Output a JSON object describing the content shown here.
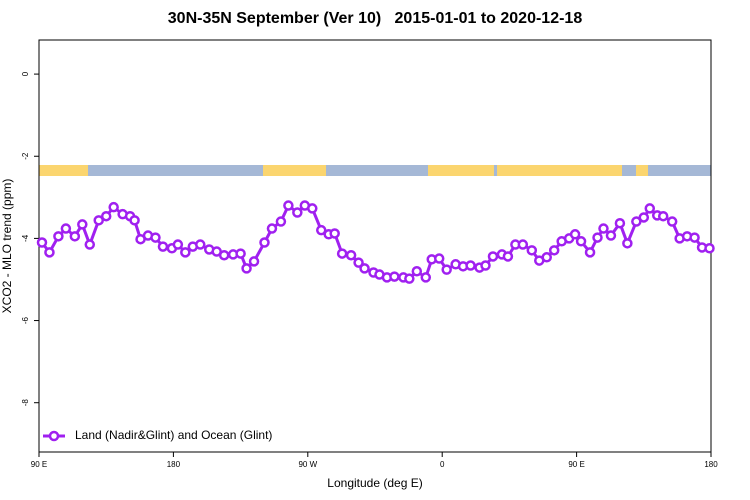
{
  "chart_data": {
    "type": "line",
    "title": "30N-35N September (Ver 10)   2015-01-01 to 2020-12-18",
    "xlabel": "Longitude (deg E)",
    "ylabel": "XCO2 - MLO trend (ppm)",
    "xlim": [
      90,
      540
    ],
    "ylim": [
      -9.2,
      0.83
    ],
    "xticks": [
      {
        "value": 90,
        "label": "90 E"
      },
      180,
      {
        "value": 270,
        "label": "90 W"
      },
      {
        "value": 360,
        "label": "0"
      },
      {
        "value": 450,
        "label": "90 E"
      },
      {
        "value": 540,
        "label": "180"
      }
    ],
    "yticks": [
      0,
      -2,
      -4,
      -6,
      -8
    ],
    "series": [
      {
        "name": "Land (Nadir&Glint) and Ocean (Glint)",
        "color": "#a020f0",
        "x": [
          92,
          97,
          103,
          108,
          114,
          119,
          124,
          130,
          135,
          140,
          146,
          151,
          154,
          158,
          163,
          168,
          173,
          179,
          183,
          188,
          193,
          198,
          204,
          209,
          214,
          220,
          225,
          229,
          234,
          241,
          246,
          252,
          257,
          263,
          268,
          273,
          279,
          284,
          288,
          293,
          299,
          304,
          308,
          314,
          318,
          323,
          328,
          334,
          338,
          343,
          349,
          353,
          358,
          363,
          369,
          374,
          379,
          385,
          389,
          394,
          400,
          404,
          409,
          414,
          420,
          425,
          430,
          435,
          440,
          445,
          449,
          453,
          459,
          464,
          468,
          473,
          479,
          484,
          490,
          495,
          499,
          504,
          508,
          514,
          519,
          524,
          529,
          534,
          539
        ],
        "values": [
          -4.1,
          -4.34,
          -3.95,
          -3.76,
          -3.95,
          -3.66,
          -4.15,
          -3.56,
          -3.46,
          -3.24,
          -3.41,
          -3.46,
          -3.56,
          -4.02,
          -3.93,
          -3.98,
          -4.2,
          -4.24,
          -4.15,
          -4.34,
          -4.2,
          -4.15,
          -4.27,
          -4.32,
          -4.41,
          -4.39,
          -4.37,
          -4.73,
          -4.56,
          -4.1,
          -3.76,
          -3.59,
          -3.2,
          -3.37,
          -3.2,
          -3.27,
          -3.8,
          -3.9,
          -3.88,
          -4.37,
          -4.41,
          -4.59,
          -4.73,
          -4.83,
          -4.88,
          -4.95,
          -4.93,
          -4.95,
          -4.98,
          -4.8,
          -4.95,
          -4.51,
          -4.49,
          -4.76,
          -4.63,
          -4.68,
          -4.66,
          -4.71,
          -4.66,
          -4.44,
          -4.39,
          -4.44,
          -4.15,
          -4.15,
          -4.29,
          -4.54,
          -4.46,
          -4.29,
          -4.07,
          -4.0,
          -3.9,
          -4.07,
          -4.34,
          -3.98,
          -3.76,
          -3.93,
          -3.63,
          -4.12,
          -3.59,
          -3.49,
          -3.27,
          -3.44,
          -3.46,
          -3.59,
          -4.0,
          -3.95,
          -3.98,
          -4.22,
          -4.24
        ]
      }
    ]
  }
}
